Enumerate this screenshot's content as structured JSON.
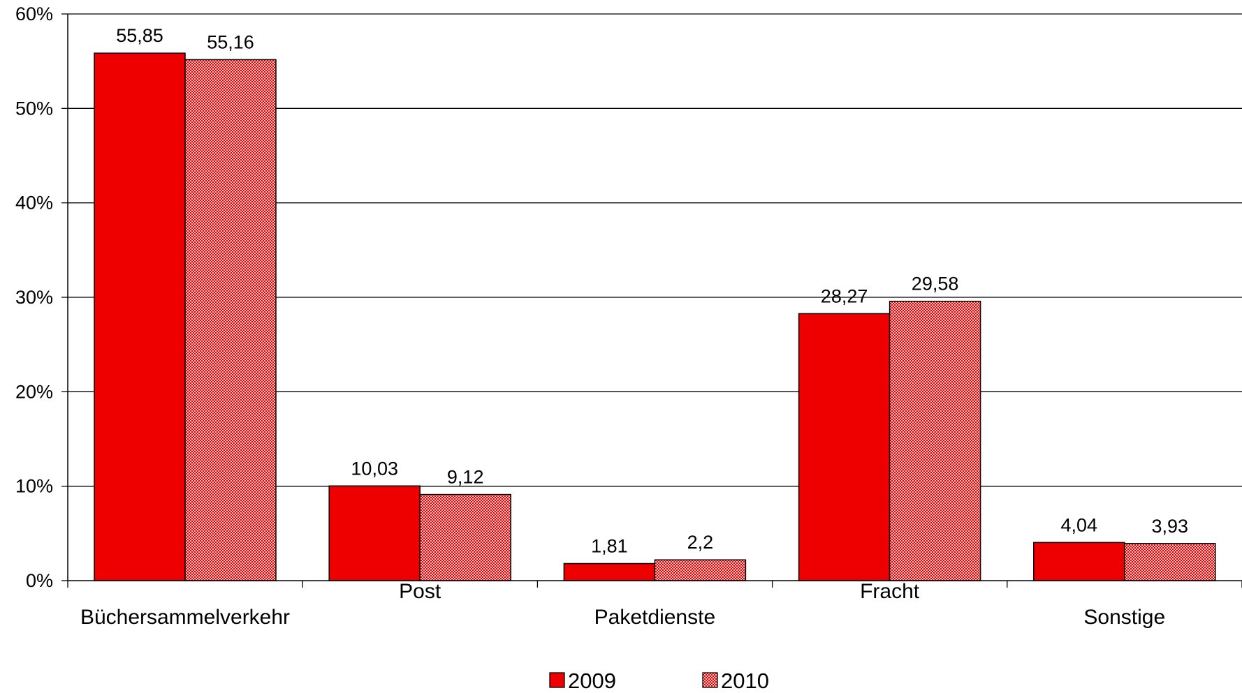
{
  "chart_data": {
    "type": "bar",
    "categories": [
      "Büchersammelverkehr",
      "Post",
      "Paketdienste",
      "Fracht",
      "Sonstige"
    ],
    "series": [
      {
        "name": "2009",
        "values": [
          55.85,
          10.03,
          1.81,
          28.27,
          4.04
        ],
        "labels": [
          "55,85",
          "10,03",
          "1,81",
          "28,27",
          "4,04"
        ],
        "color": "#ee0000",
        "pattern": "solid"
      },
      {
        "name": "2010",
        "values": [
          55.16,
          9.12,
          2.2,
          29.58,
          3.93
        ],
        "labels": [
          "55,16",
          "9,12",
          "2,2",
          "29,58",
          "3,93"
        ],
        "color": "#ee0000",
        "pattern": "dotted"
      }
    ],
    "y_ticks": [
      "0%",
      "10%",
      "20%",
      "30%",
      "40%",
      "50%",
      "60%"
    ],
    "ylim": [
      0,
      60
    ],
    "grid": true,
    "legend": "bottom-center",
    "colors": {
      "bar": "#ee0000",
      "bar_stroke": "#000000",
      "pattern_light": "#f7c4c4",
      "grid": "#000000"
    }
  }
}
